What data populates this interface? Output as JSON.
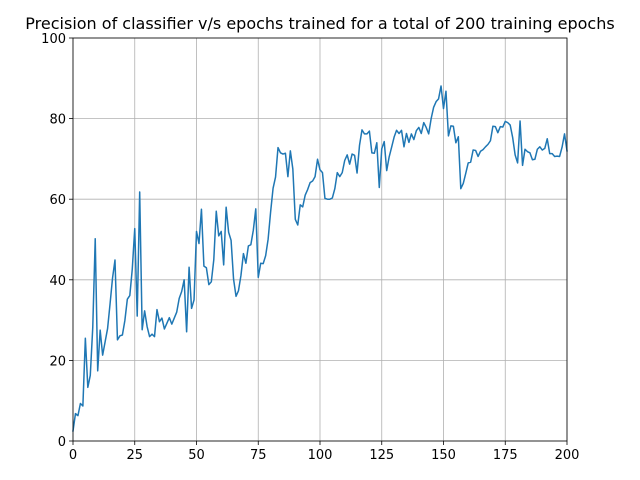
{
  "chart_data": {
    "type": "line",
    "title": "Precision of classifier v/s epochs trained for a total of 200 training epochs",
    "xlabel": "",
    "ylabel": "",
    "xlim": [
      0,
      200
    ],
    "ylim": [
      0,
      100
    ],
    "xticks": [
      0,
      25,
      50,
      75,
      100,
      125,
      150,
      175,
      200
    ],
    "yticks": [
      0,
      20,
      40,
      60,
      80,
      100
    ],
    "grid": true,
    "legend": "none",
    "series": [
      {
        "color": "#1f77b4",
        "x": [
          0,
          1,
          2,
          3,
          4,
          5,
          6,
          7,
          8,
          9,
          10,
          11,
          12,
          13,
          14,
          15,
          16,
          17,
          18,
          19,
          20,
          21,
          22,
          23,
          24,
          25,
          26,
          27,
          28,
          29,
          30,
          31,
          32,
          33,
          34,
          35,
          36,
          37,
          38,
          39,
          40,
          41,
          42,
          43,
          44,
          45,
          46,
          47,
          48,
          49,
          50,
          51,
          52,
          53,
          54,
          55,
          56,
          57,
          58,
          59,
          60,
          61,
          62,
          63,
          64,
          65,
          66,
          67,
          68,
          69,
          70,
          71,
          72,
          73,
          74,
          75,
          76,
          77,
          78,
          79,
          80,
          81,
          82,
          83,
          84,
          85,
          86,
          87,
          88,
          89,
          90,
          91,
          92,
          93,
          94,
          95,
          96,
          97,
          98,
          99,
          100,
          101,
          102,
          103,
          104,
          105,
          106,
          107,
          108,
          109,
          110,
          111,
          112,
          113,
          114,
          115,
          116,
          117,
          118,
          119,
          120,
          121,
          122,
          123,
          124,
          125,
          126,
          127,
          128,
          129,
          130,
          131,
          132,
          133,
          134,
          135,
          136,
          137,
          138,
          139,
          140,
          141,
          142,
          143,
          144,
          145,
          146,
          147,
          148,
          149,
          150,
          151,
          152,
          153,
          154,
          155,
          156,
          157,
          158,
          159,
          160,
          161,
          162,
          163,
          164,
          165,
          166,
          167,
          168,
          169,
          170,
          171,
          172,
          173,
          174,
          175,
          176,
          177,
          178,
          179,
          180,
          181,
          182,
          183,
          184,
          185,
          186,
          187,
          188,
          189,
          190,
          191,
          192,
          193,
          194,
          195,
          196,
          197,
          198,
          199,
          200
        ],
        "y": [
          2.5,
          6.8,
          6.3,
          9.3,
          8.7,
          25.5,
          13.3,
          16.3,
          28.2,
          50.2,
          17.4,
          27.5,
          21.3,
          24.6,
          27.9,
          34.0,
          40.4,
          44.9,
          25.1,
          26.1,
          26.3,
          29.9,
          35.2,
          36.1,
          42.7,
          52.7,
          31.0,
          61.8,
          27.6,
          32.3,
          28.4,
          25.9,
          26.5,
          25.9,
          32.6,
          29.6,
          30.5,
          27.8,
          29.2,
          30.6,
          29.0,
          30.5,
          32.0,
          35.4,
          37.1,
          40.0,
          27.1,
          43.1,
          32.9,
          35.0,
          52.0,
          49.0,
          57.5,
          43.4,
          43.0,
          38.8,
          39.5,
          45.0,
          57.0,
          50.9,
          52.0,
          43.7,
          58.0,
          51.8,
          49.8,
          40.2,
          35.9,
          37.3,
          41.1,
          46.5,
          44.1,
          48.4,
          48.7,
          52.3,
          57.6,
          40.6,
          44.1,
          44.0,
          46.0,
          50.1,
          56.8,
          62.7,
          65.5,
          72.8,
          71.5,
          71.2,
          71.4,
          65.6,
          72.0,
          67.5,
          55.0,
          53.6,
          58.6,
          58.1,
          61.0,
          62.4,
          64.1,
          64.5,
          65.6,
          69.9,
          67.3,
          66.6,
          60.2,
          60.0,
          60.0,
          60.3,
          62.6,
          66.6,
          65.6,
          66.6,
          69.6,
          71.0,
          68.7,
          71.2,
          70.9,
          66.5,
          73.4,
          77.2,
          76.2,
          76.2,
          76.9,
          71.5,
          71.4,
          74.0,
          62.9,
          72.5,
          74.3,
          67.1,
          70.5,
          72.9,
          75.4,
          77.1,
          76.3,
          77.1,
          73.0,
          76.3,
          74.1,
          76.2,
          74.8,
          77.0,
          77.8,
          76.3,
          79.0,
          77.8,
          76.2,
          80.0,
          82.8,
          84.2,
          84.9,
          88.1,
          82.5,
          86.8,
          75.7,
          78.2,
          78.1,
          74.0,
          75.5,
          62.6,
          63.9,
          66.4,
          69.0,
          69.2,
          72.2,
          72.1,
          70.6,
          71.9,
          72.3,
          73.0,
          73.6,
          74.5,
          78.1,
          78.0,
          76.5,
          78.0,
          77.9,
          79.3,
          79.0,
          78.4,
          75.3,
          71.0,
          69.0,
          79.4,
          68.4,
          72.4,
          71.8,
          71.5,
          69.8,
          69.9,
          72.4,
          73.0,
          72.2,
          72.6,
          75.0,
          71.3,
          71.3,
          70.6,
          70.7,
          70.6,
          72.9,
          76.2,
          72.0
        ]
      }
    ]
  }
}
